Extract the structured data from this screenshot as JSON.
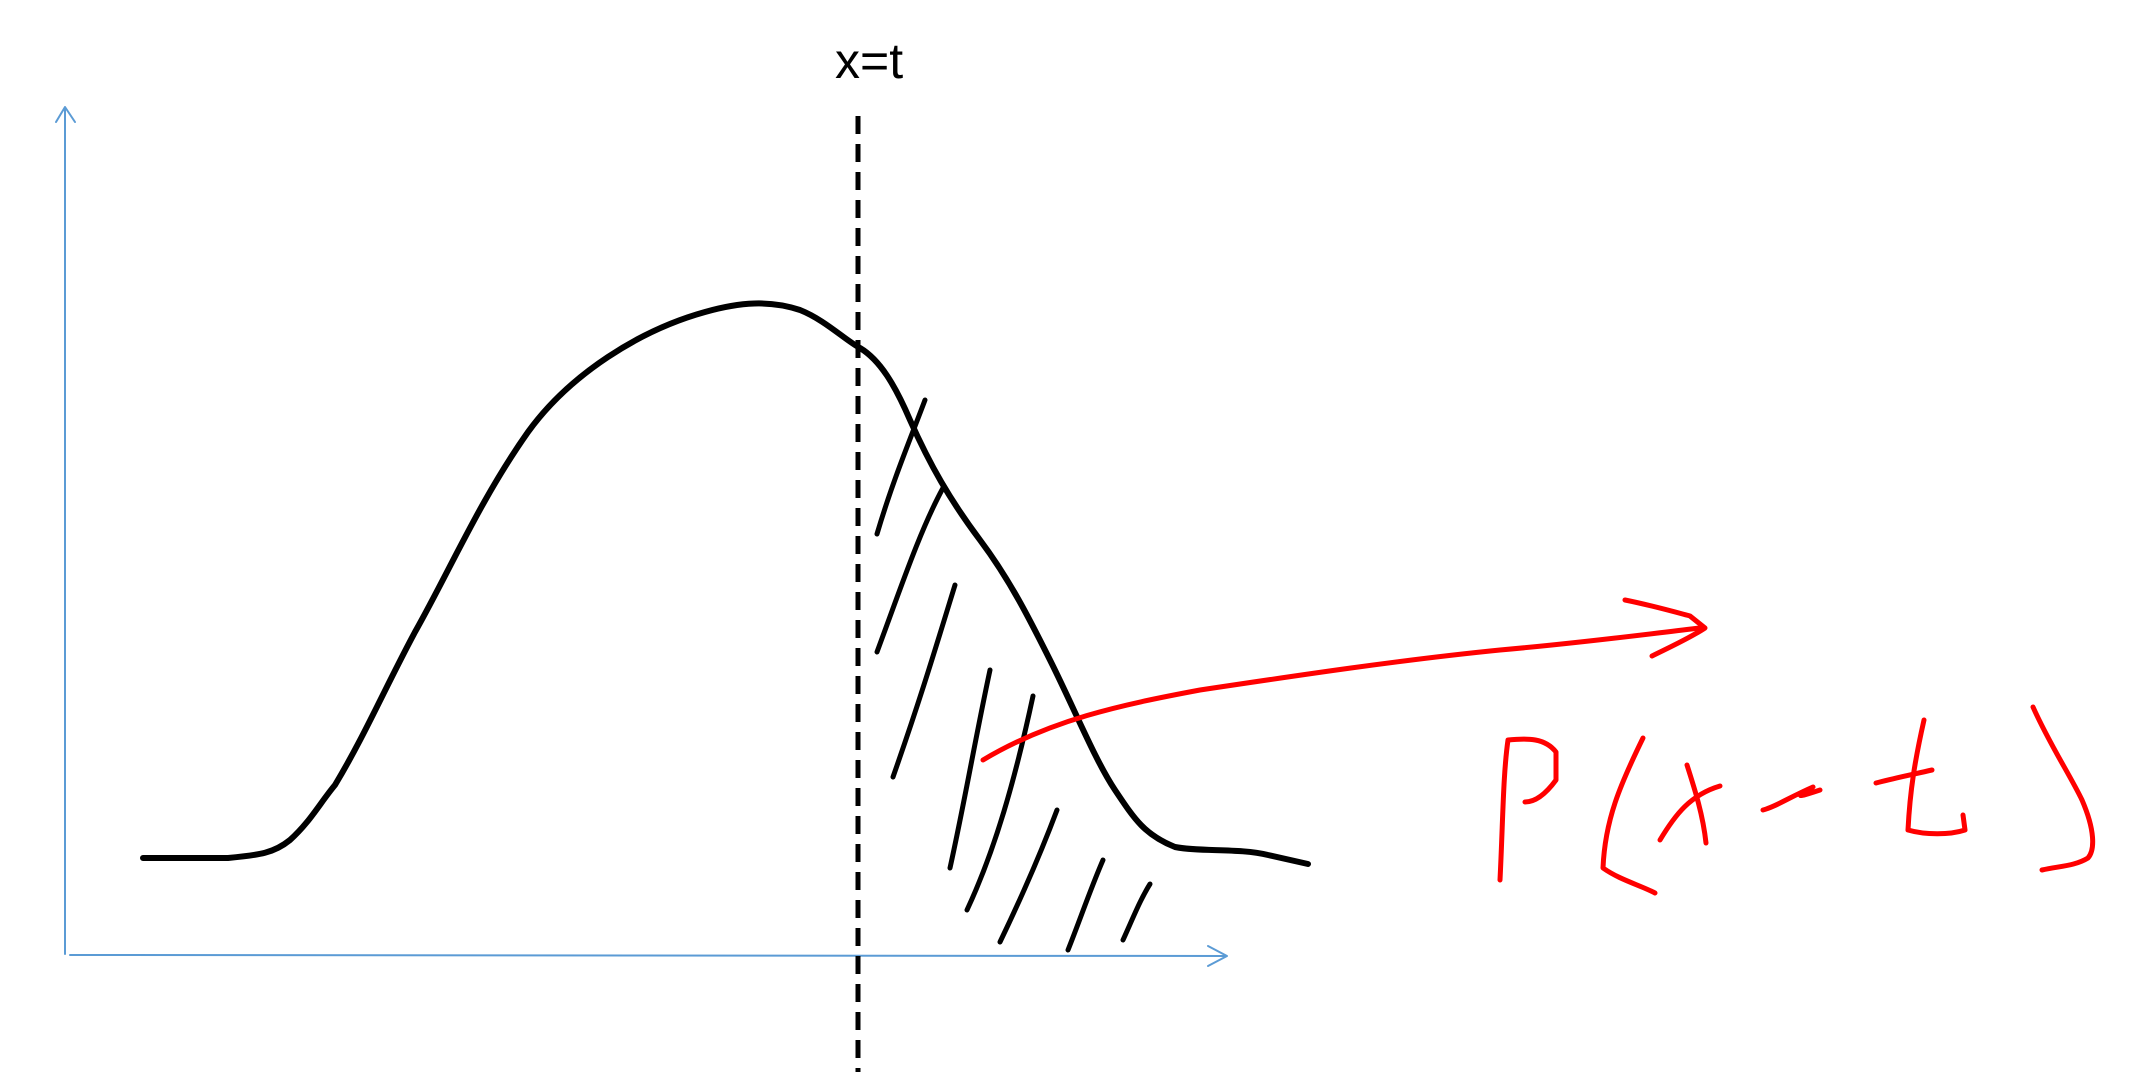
{
  "threshold": {
    "label": "x=t"
  },
  "annotation": {
    "text": "P(x>t)",
    "style": "handwritten"
  },
  "colors": {
    "axis": "#5b9bd5",
    "curve": "#000000",
    "threshold_line": "#000000",
    "hatching": "#000000",
    "annotation": "#ff0000",
    "background": "#ffffff"
  }
}
